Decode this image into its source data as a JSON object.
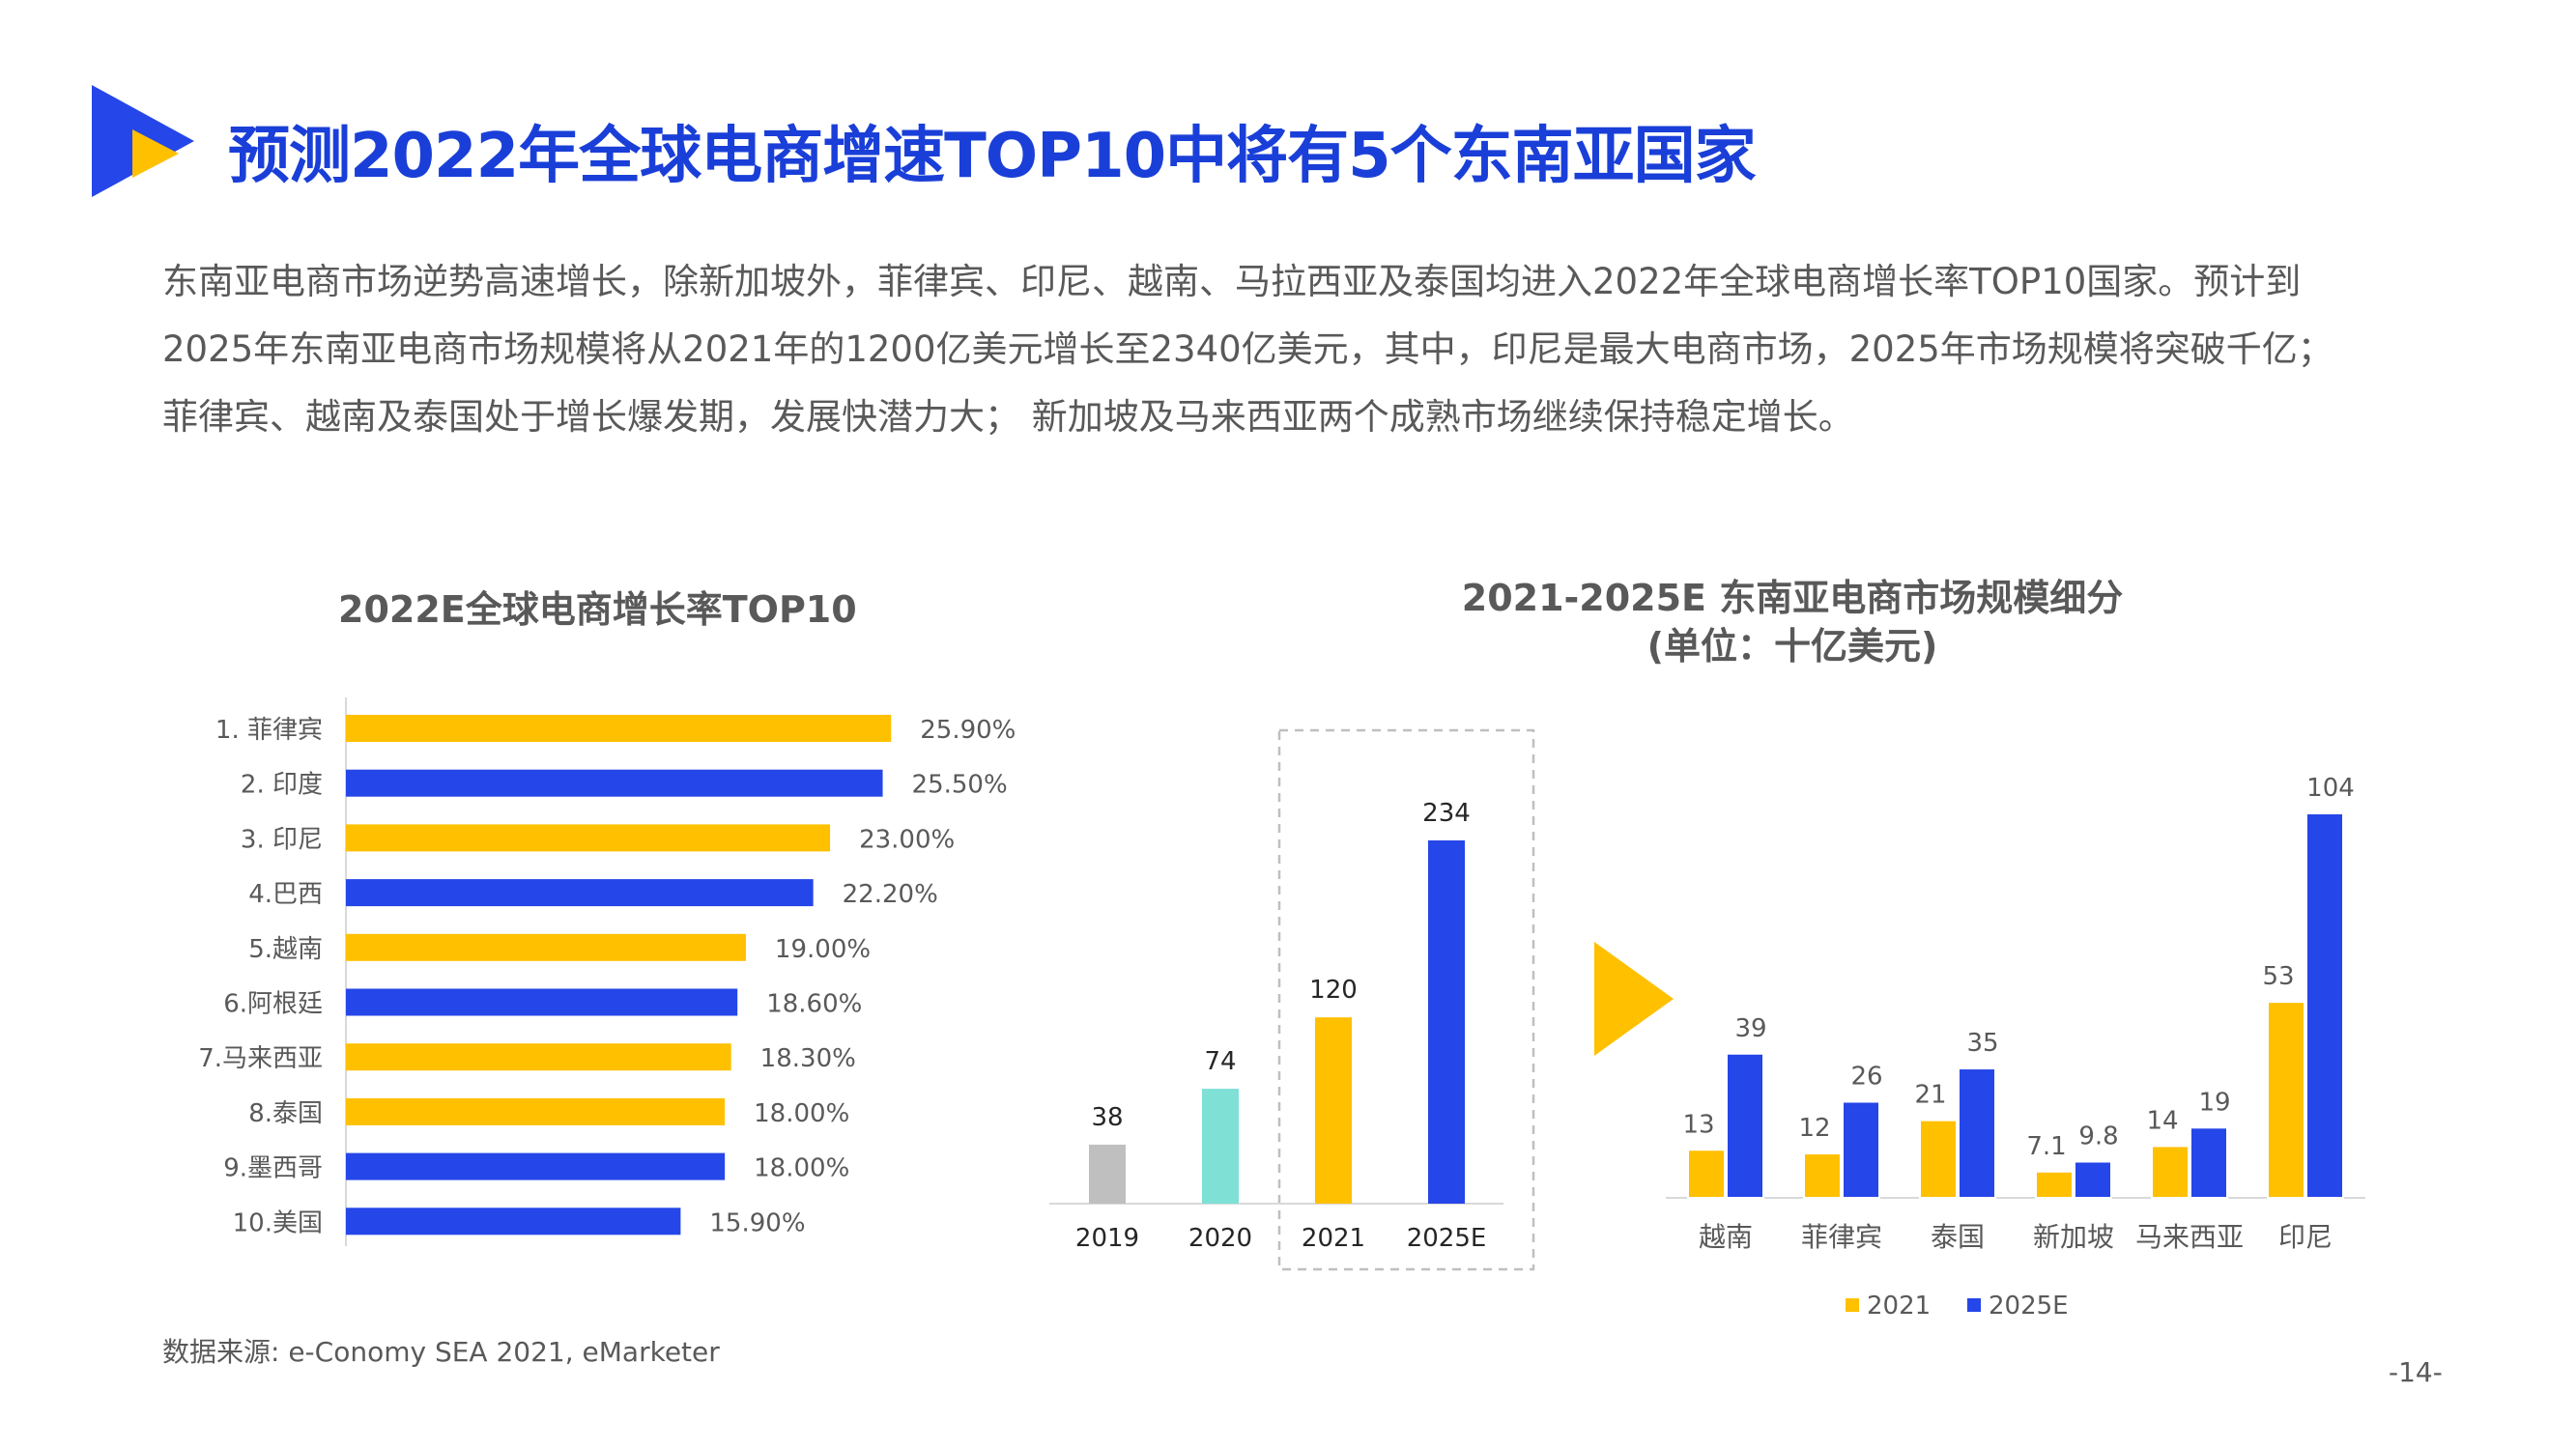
{
  "title": "预测2022年全球电商增速TOP10中将有5个东南亚国家",
  "description": [
    "东南亚电商市场逆势高速增长，除新加坡外，菲律宾、印尼、越南、马拉西亚及泰国均进入2022年全球电商增长率TOP10国家。预计到",
    "2025年东南亚电商市场规模将从2021年的1200亿美元增长至2340亿美元，其中，印尼是最大电商市场，2025年市场规模将突破千亿；",
    "菲律宾、越南及泰国处于增长爆发期，发展快潜力大；  新加坡及马来西亚两个成熟市场继续保持稳定增长。"
  ],
  "colors": {
    "blue": "#2546e8",
    "yellow": "#ffc000",
    "gray": "#bfbfbf",
    "teal": "#7fe0d6",
    "title_blue": "#1a3fd8"
  },
  "source": "数据来源: e-Conomy SEA 2021, eMarketer",
  "page_number": "-14-",
  "chart_data": [
    {
      "type": "bar",
      "orientation": "horizontal",
      "title": "2022E全球电商增长率TOP10",
      "categories": [
        "1. 菲律宾",
        "2. 印度",
        "3. 印尼",
        "4.巴西",
        "5.越南",
        "6.阿根廷",
        "7.马来西亚",
        "8.泰国",
        "9.墨西哥",
        "10.美国"
      ],
      "values": [
        25.9,
        25.5,
        23.0,
        22.2,
        19.0,
        18.6,
        18.3,
        18.0,
        18.0,
        15.9
      ],
      "labels": [
        "25.90%",
        "25.50%",
        "23.00%",
        "22.20%",
        "19.00%",
        "18.60%",
        "18.30%",
        "18.00%",
        "18.00%",
        "15.90%"
      ],
      "bar_colors": [
        "yellow",
        "blue",
        "yellow",
        "blue",
        "yellow",
        "blue",
        "yellow",
        "yellow",
        "blue",
        "blue"
      ],
      "xlim": [
        0,
        28
      ]
    },
    {
      "type": "bar",
      "title": "2021-2025E 东南亚电商市场规模细分",
      "subtitle": "(单位：十亿美元)",
      "categories": [
        "2019",
        "2020",
        "2021",
        "2025E"
      ],
      "values": [
        38,
        74,
        120,
        234
      ],
      "bar_colors": [
        "gray",
        "teal",
        "yellow",
        "blue"
      ],
      "highlight": [
        "2021",
        "2025E"
      ],
      "ylim": [
        0,
        240
      ]
    },
    {
      "type": "bar",
      "categories": [
        "越南",
        "菲律宾",
        "泰国",
        "新加坡",
        "马来西亚",
        "印尼"
      ],
      "series": [
        {
          "name": "2021",
          "color": "yellow",
          "values": [
            13,
            12,
            21,
            7.1,
            14,
            53
          ]
        },
        {
          "name": "2025E",
          "color": "blue",
          "values": [
            39,
            26,
            35,
            9.8,
            19,
            104
          ]
        }
      ],
      "legend": "bottom",
      "ylim": [
        0,
        106
      ]
    }
  ]
}
